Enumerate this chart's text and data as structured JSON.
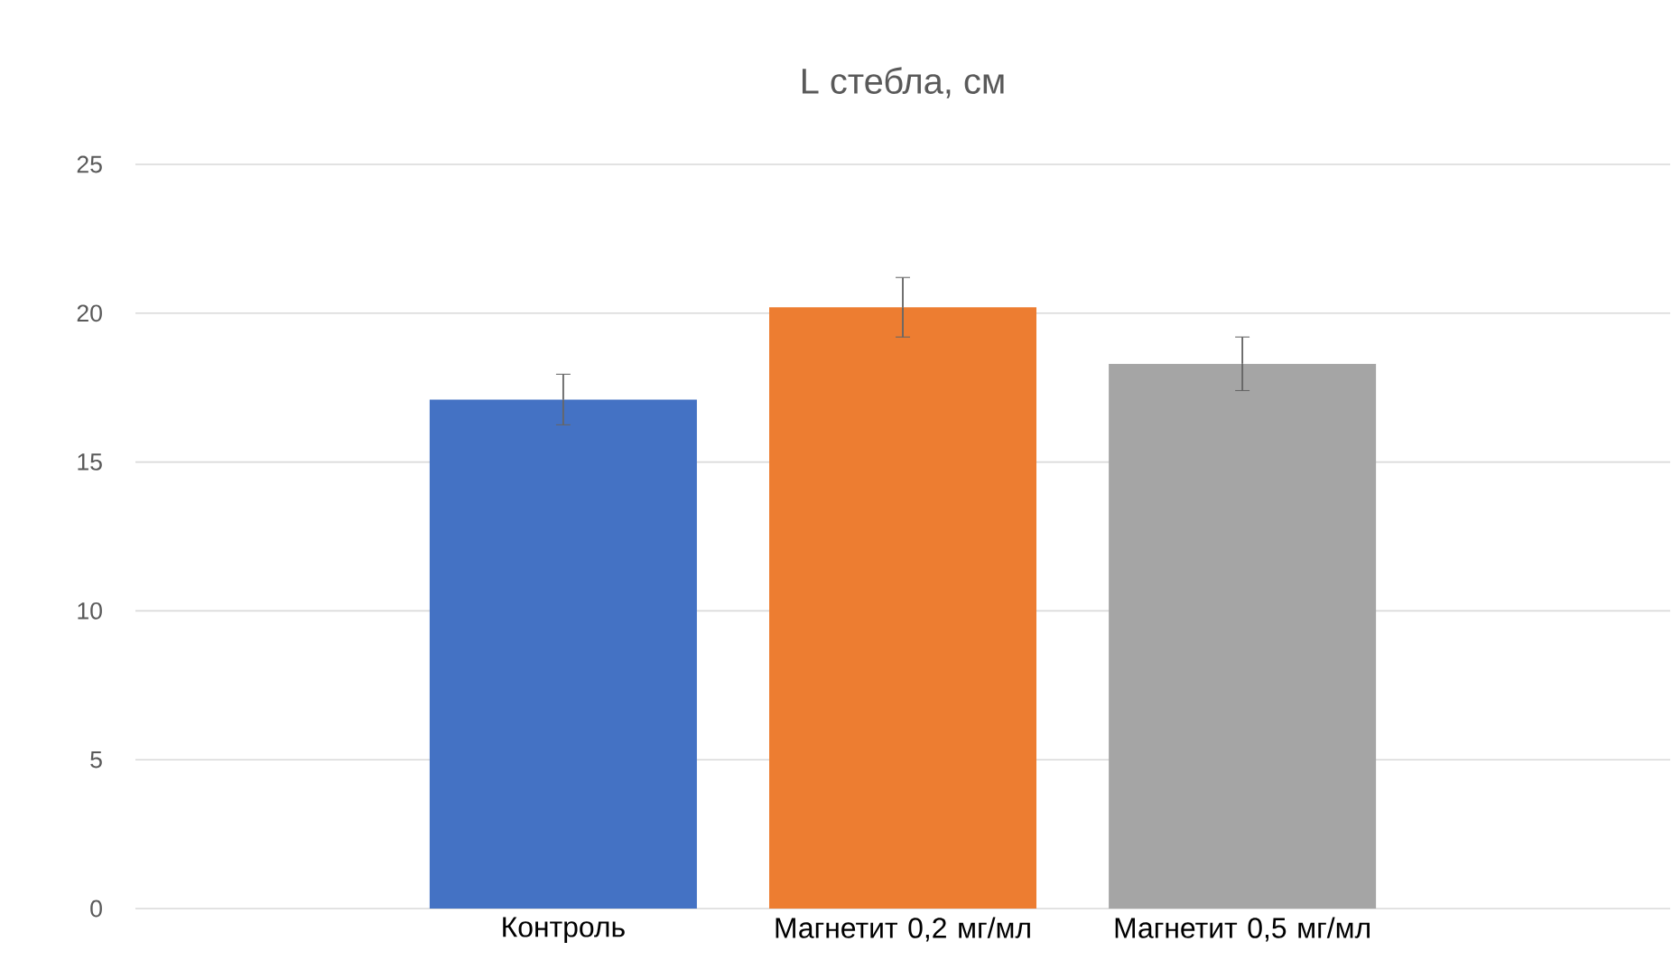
{
  "chart_data": {
    "type": "bar",
    "title": "L стебла, см",
    "categories": [
      "Контроль",
      "Магнетит 0,2 мг/мл",
      "Магнетит 0,5 мг/мл"
    ],
    "values": [
      17.1,
      20.2,
      18.3
    ],
    "errors": [
      0.85,
      1.0,
      0.9
    ],
    "colors": [
      "#4472c4",
      "#ed7d31",
      "#a5a5a5"
    ],
    "ylim": [
      0,
      25
    ],
    "yticks": [
      0,
      5,
      10,
      15,
      20,
      25
    ],
    "grid": "y"
  }
}
